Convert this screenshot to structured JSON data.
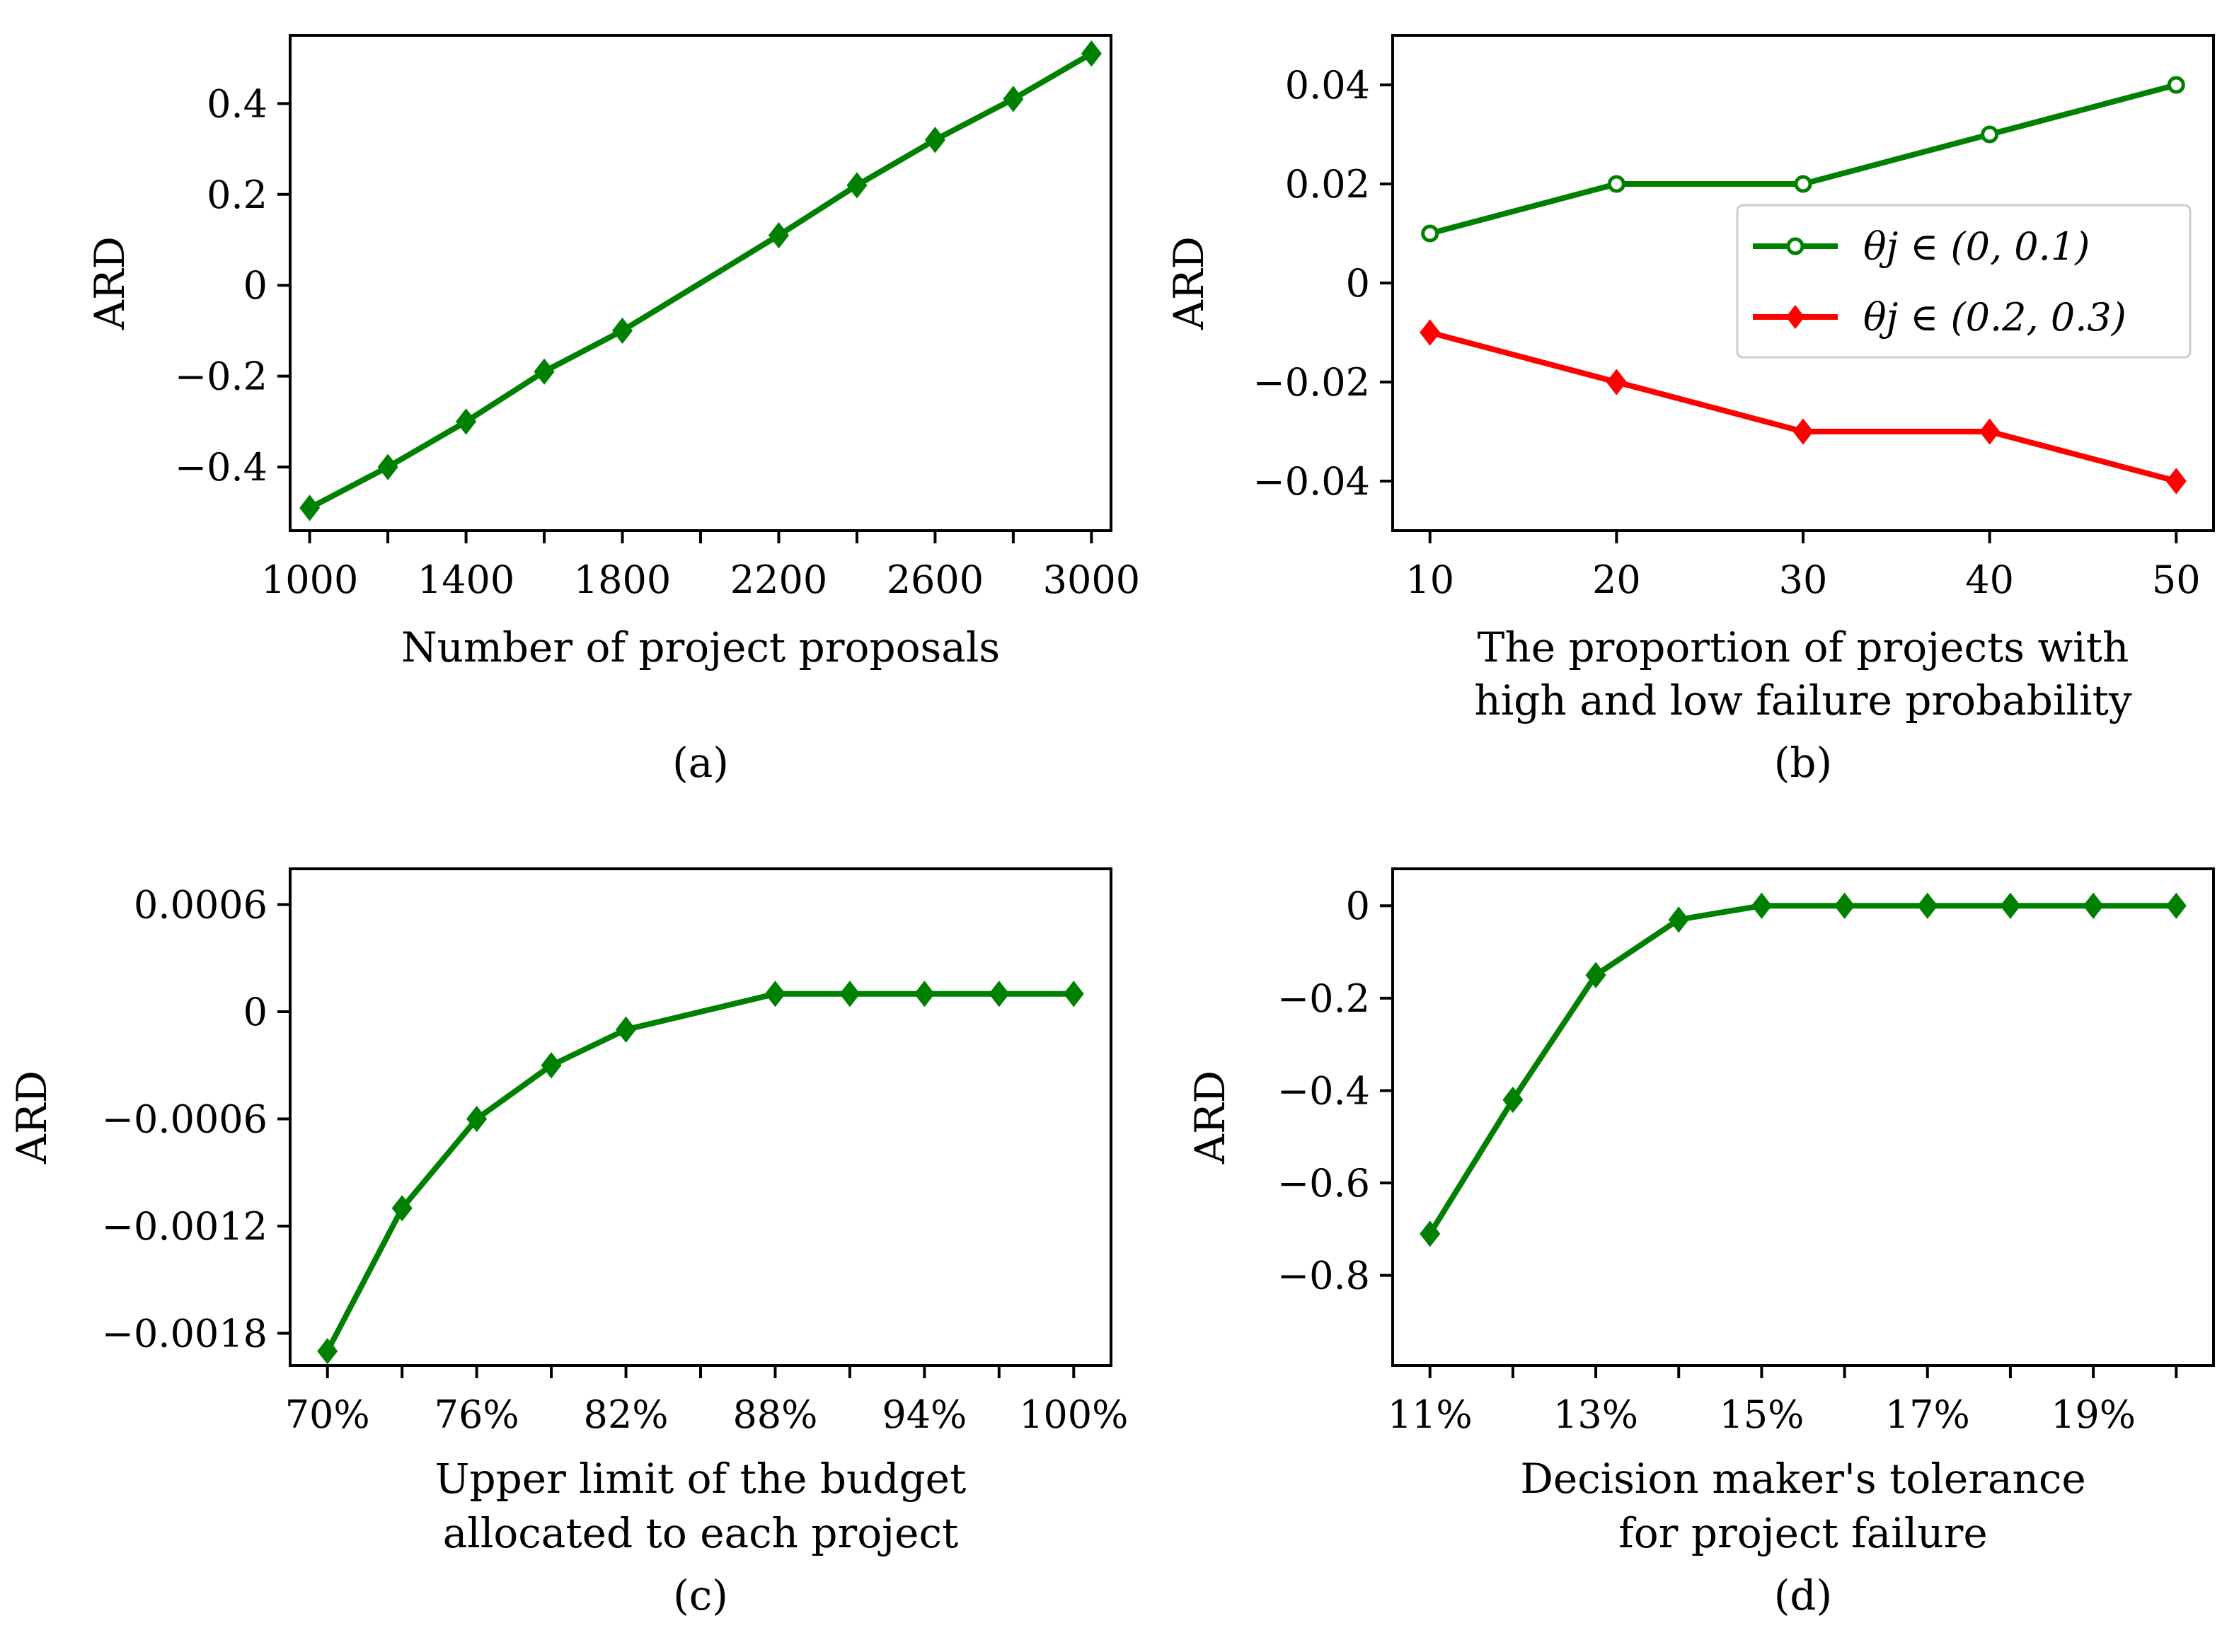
{
  "chart_data": [
    {
      "id": "a",
      "type": "line",
      "caption": "(a)",
      "xlabel": [
        "Number of project proposals"
      ],
      "ylabel": "ARD",
      "xlim": [
        950,
        3050
      ],
      "ylim": [
        -0.54,
        0.55
      ],
      "xticks": [
        1000,
        1400,
        1800,
        2200,
        2600,
        3000
      ],
      "xtick_labels": [
        "1000",
        "1400",
        "1800",
        "2200",
        "2600",
        "3000"
      ],
      "yticks": [
        -0.4,
        -0.2,
        0,
        0.2,
        0.4
      ],
      "ytick_labels": [
        "−0.4",
        "−0.2",
        "0",
        "0.2",
        "0.4"
      ],
      "minor_xticks": [
        1200,
        1600,
        2000,
        2400,
        2800
      ],
      "series": [
        {
          "name": "",
          "color": "#008000",
          "marker": "diamond",
          "x": [
            1000,
            1200,
            1400,
            1600,
            1800,
            2200,
            2400,
            2600,
            2800,
            3000
          ],
          "y": [
            -0.49,
            -0.4,
            -0.3,
            -0.19,
            -0.1,
            0.11,
            0.22,
            0.32,
            0.41,
            0.51
          ]
        }
      ]
    },
    {
      "id": "b",
      "type": "line",
      "caption": "(b)",
      "xlabel": [
        "The proportion of projects with",
        "high and low failure probability"
      ],
      "ylabel": "ARD",
      "xlim": [
        8,
        52
      ],
      "ylim": [
        -0.05,
        0.05
      ],
      "xticks": [
        10,
        20,
        30,
        40,
        50
      ],
      "xtick_labels": [
        "10",
        "20",
        "30",
        "40",
        "50"
      ],
      "yticks": [
        -0.04,
        -0.02,
        0,
        0.02,
        0.04
      ],
      "ytick_labels": [
        "−0.04",
        "−0.02",
        "0",
        "0.02",
        "0.04"
      ],
      "minor_xticks": [],
      "legend": {
        "position": "center-right"
      },
      "series": [
        {
          "name": "θj ∈ (0, 0.1)",
          "color": "#008000",
          "marker": "circle-open",
          "x": [
            10,
            20,
            30,
            40,
            50
          ],
          "y": [
            0.01,
            0.02,
            0.02,
            0.03,
            0.04
          ]
        },
        {
          "name": "θj ∈ (0.2, 0.3)",
          "color": "#ff0000",
          "marker": "diamond",
          "x": [
            10,
            20,
            30,
            40,
            50
          ],
          "y": [
            -0.01,
            -0.02,
            -0.03,
            -0.03,
            -0.04
          ]
        }
      ]
    },
    {
      "id": "c",
      "type": "line",
      "caption": "(c)",
      "xlabel": [
        "Upper limit of the budget",
        "allocated to each project"
      ],
      "ylabel": "ARD",
      "xlim": [
        68.5,
        101.5
      ],
      "ylim": [
        -0.00198,
        0.0008
      ],
      "xticks": [
        70,
        76,
        82,
        88,
        94,
        100
      ],
      "xtick_labels": [
        "70%",
        "76%",
        "82%",
        "88%",
        "94%",
        "100%"
      ],
      "yticks": [
        -0.0018,
        -0.0012,
        -0.0006,
        0,
        0.0006
      ],
      "ytick_labels": [
        "−0.0018",
        "−0.0012",
        "−0.0006",
        "0",
        "0.0006"
      ],
      "minor_xticks": [
        73,
        79,
        85,
        91,
        97
      ],
      "series": [
        {
          "name": "",
          "color": "#008000",
          "marker": "diamond",
          "x": [
            70,
            73,
            76,
            79,
            82,
            88,
            91,
            94,
            97,
            100
          ],
          "y": [
            -0.0019,
            -0.0011,
            -0.0006,
            -0.0003,
            -0.0001,
            0.0001,
            0.0001,
            0.0001,
            0.0001,
            0.0001
          ]
        }
      ]
    },
    {
      "id": "d",
      "type": "line",
      "caption": "(d)",
      "xlabel": [
        "Decision maker's tolerance",
        "for project failure"
      ],
      "ylabel": "ARD",
      "xlim": [
        10.55,
        20.45
      ],
      "ylim": [
        -0.995,
        0.08
      ],
      "xticks": [
        11,
        13,
        15,
        17,
        19
      ],
      "xtick_labels": [
        "11%",
        "13%",
        "15%",
        "17%",
        "19%"
      ],
      "yticks": [
        -0.8,
        -0.6,
        -0.4,
        -0.2,
        0
      ],
      "ytick_labels": [
        "−0.8",
        "−0.6",
        "−0.4",
        "−0.2",
        "0"
      ],
      "minor_xticks": [
        12,
        14,
        16,
        18,
        20
      ],
      "series": [
        {
          "name": "",
          "color": "#008000",
          "marker": "diamond",
          "x": [
            11,
            12,
            13,
            14,
            15,
            16,
            17,
            18,
            19,
            20
          ],
          "y": [
            -0.71,
            -0.42,
            -0.15,
            -0.03,
            0,
            0,
            0,
            0,
            0,
            0
          ]
        }
      ]
    }
  ]
}
